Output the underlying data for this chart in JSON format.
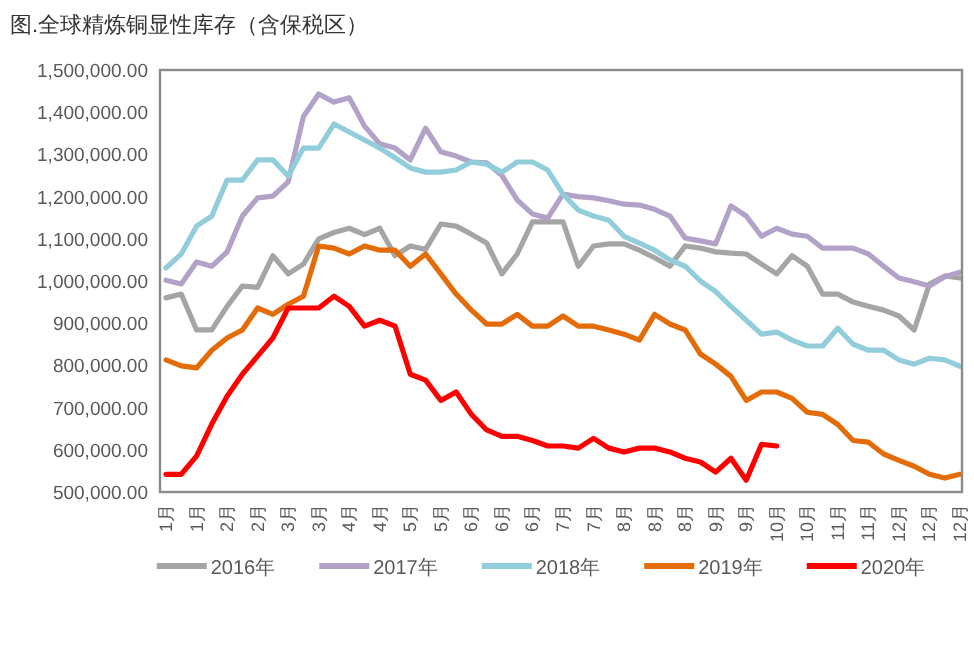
{
  "chart_data": {
    "type": "line",
    "title": "图.全球精炼铜显性库存（含保税区）",
    "categories": [
      "1月",
      null,
      "1月",
      null,
      "2月",
      null,
      "2月",
      null,
      "3月",
      null,
      "3月",
      null,
      "4月",
      null,
      "4月",
      null,
      "5月",
      null,
      "5月",
      null,
      "6月",
      null,
      "6月",
      null,
      "6月",
      null,
      "7月",
      null,
      "7月",
      null,
      "8月",
      null,
      "8月",
      null,
      "8月",
      null,
      "9月",
      null,
      "9月",
      null,
      "10月",
      null,
      "10月",
      null,
      "11月",
      null,
      "11月",
      null,
      "12月",
      null,
      "12月",
      null,
      "12月"
    ],
    "series": [
      {
        "name": "2016年",
        "color": "#a5a5a5",
        "values": [
          960000,
          969000,
          884000,
          884000,
          940000,
          988000,
          985000,
          1060000,
          1017000,
          1040000,
          1100000,
          1115000,
          1125000,
          1110000,
          1125000,
          1060000,
          1083000,
          1075000,
          1135000,
          1130000,
          1111000,
          1090000,
          1017000,
          1064000,
          1140000,
          1140000,
          1140000,
          1035000,
          1083000,
          1088000,
          1088000,
          1073000,
          1055000,
          1035000,
          1083000,
          1078000,
          1069000,
          1066000,
          1064000,
          1040000,
          1017000,
          1060000,
          1035000,
          969000,
          969000,
          950000,
          940000,
          931000,
          917000,
          884000,
          993000,
          1012000,
          1007000
        ]
      },
      {
        "name": "2017年",
        "color": "#b3a2c7",
        "values": [
          1002000,
          993000,
          1045000,
          1035000,
          1069000,
          1154000,
          1197000,
          1201000,
          1235000,
          1390000,
          1443000,
          1424000,
          1434000,
          1367000,
          1325000,
          1315000,
          1287000,
          1362000,
          1306000,
          1296000,
          1282000,
          1280000,
          1250000,
          1192000,
          1159000,
          1149000,
          1206000,
          1200000,
          1197000,
          1190000,
          1182000,
          1180000,
          1170000,
          1154000,
          1102000,
          1095000,
          1088000,
          1178000,
          1154000,
          1106000,
          1125000,
          1111000,
          1106000,
          1078000,
          1078000,
          1078000,
          1064000,
          1035000,
          1007000,
          998000,
          988000,
          1010000,
          1021000
        ]
      },
      {
        "name": "2018年",
        "color": "#92cddc",
        "values": [
          1031000,
          1064000,
          1130000,
          1154000,
          1239000,
          1239000,
          1287000,
          1287000,
          1249000,
          1315000,
          1315000,
          1372000,
          1353000,
          1334000,
          1315000,
          1292000,
          1268000,
          1258000,
          1258000,
          1263000,
          1282000,
          1277000,
          1258000,
          1282000,
          1282000,
          1263000,
          1206000,
          1168000,
          1154000,
          1144000,
          1106000,
          1090000,
          1073000,
          1050000,
          1035000,
          1000000,
          975000,
          940000,
          907000,
          874000,
          879000,
          860000,
          846000,
          846000,
          888000,
          850000,
          836000,
          836000,
          813000,
          803000,
          817000,
          813000,
          798000
        ]
      },
      {
        "name": "2019年",
        "color": "#e36c09",
        "values": [
          813000,
          799000,
          794000,
          836000,
          865000,
          884000,
          936000,
          921000,
          945000,
          964000,
          1083000,
          1078000,
          1064000,
          1083000,
          1073000,
          1073000,
          1035000,
          1064000,
          1017000,
          969000,
          931000,
          898000,
          898000,
          921000,
          893000,
          893000,
          917000,
          893000,
          893000,
          884000,
          874000,
          860000,
          921000,
          898000,
          884000,
          827000,
          803000,
          774000,
          717000,
          737000,
          737000,
          722000,
          689000,
          684000,
          660000,
          622000,
          618000,
          590000,
          575000,
          561000,
          542000,
          533000,
          542000
        ]
      },
      {
        "name": "2020年",
        "color": "#ff0000",
        "values": [
          542000,
          542000,
          585000,
          661000,
          727000,
          779000,
          822000,
          865000,
          936000,
          936000,
          936000,
          964000,
          940000,
          893000,
          907000,
          893000,
          779000,
          765000,
          717000,
          737000,
          684000,
          647000,
          632000,
          632000,
          622000,
          609000,
          609000,
          604000,
          627000,
          604000,
          595000,
          604000,
          604000,
          595000,
          580000,
          571000,
          547000,
          580000,
          528000,
          613000,
          609000,
          null,
          null,
          null,
          null,
          null,
          null,
          null,
          null,
          null,
          null,
          null,
          null
        ]
      }
    ],
    "ylim": [
      500000,
      1500000
    ],
    "yticks": [
      {
        "value": 500000,
        "label": "500,000.00"
      },
      {
        "value": 600000,
        "label": "600,000.00"
      },
      {
        "value": 700000,
        "label": "700,000.00"
      },
      {
        "value": 800000,
        "label": "800,000.00"
      },
      {
        "value": 900000,
        "label": "900,000.00"
      },
      {
        "value": 1000000,
        "label": "1,000,000.00"
      },
      {
        "value": 1100000,
        "label": "1,100,000.00"
      },
      {
        "value": 1200000,
        "label": "1,200,000.00"
      },
      {
        "value": 1300000,
        "label": "1,300,000.00"
      },
      {
        "value": 1400000,
        "label": "1,400,000.00"
      },
      {
        "value": 1500000,
        "label": "1,500,000.00"
      }
    ],
    "legend": "bottom"
  }
}
